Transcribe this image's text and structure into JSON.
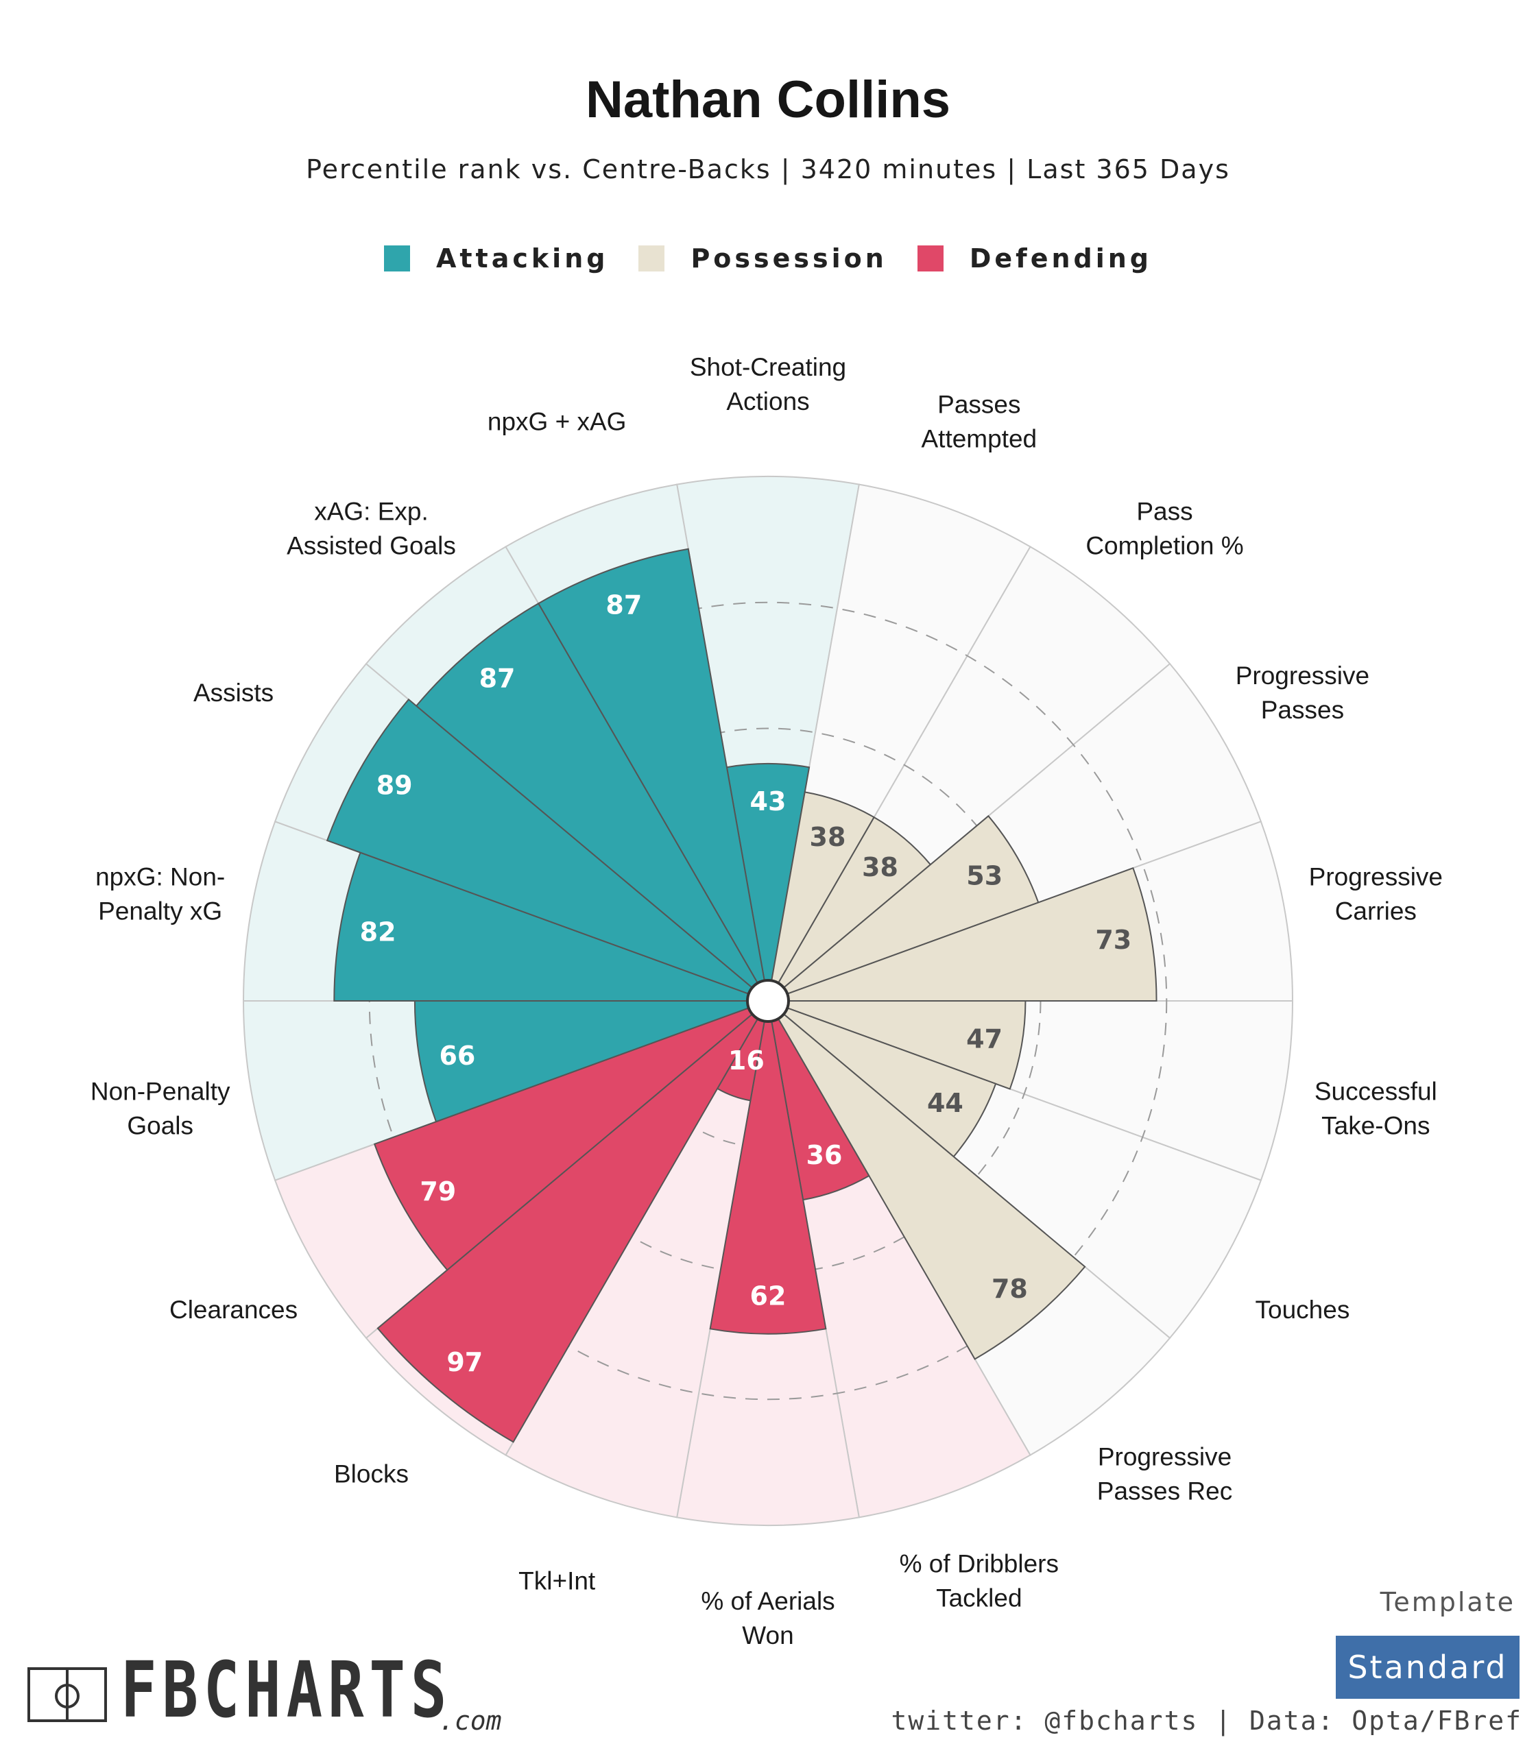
{
  "header": {
    "title": "Nathan Collins",
    "subtitle": "Percentile rank vs. Centre-Backs | 3420 minutes | Last 365 Days"
  },
  "legend": [
    {
      "label": "Attacking",
      "color": "#2fa5ac"
    },
    {
      "label": "Possession",
      "color": "#e8e2d1"
    },
    {
      "label": "Defending",
      "color": "#e04868"
    }
  ],
  "chart_data": {
    "type": "polar-bar",
    "scale_max": 100,
    "gridlines": [
      25,
      50,
      75
    ],
    "groups": {
      "Attacking": {
        "fill": "#2fa5ac",
        "background": "#e9f5f5",
        "label_color": "#ffffff"
      },
      "Possession": {
        "fill": "#e8e2d1",
        "background": "#fafafa",
        "label_color": "#555555"
      },
      "Defending": {
        "fill": "#e04868",
        "background": "#fcebef",
        "label_color": "#ffffff"
      }
    },
    "metrics": [
      {
        "label": [
          "Shot-Creating",
          "Actions"
        ],
        "value": 43,
        "group": "Attacking"
      },
      {
        "label": [
          "Passes",
          "Attempted"
        ],
        "value": 38,
        "group": "Possession"
      },
      {
        "label": [
          "Pass",
          "Completion %"
        ],
        "value": 38,
        "group": "Possession"
      },
      {
        "label": [
          "Progressive",
          "Passes"
        ],
        "value": 53,
        "group": "Possession"
      },
      {
        "label": [
          "Progressive",
          "Carries"
        ],
        "value": 73,
        "group": "Possession"
      },
      {
        "label": [
          "Successful",
          "Take-Ons"
        ],
        "value": 47,
        "group": "Possession"
      },
      {
        "label": [
          "Touches"
        ],
        "value": 44,
        "group": "Possession"
      },
      {
        "label": [
          "Progressive",
          "Passes Rec"
        ],
        "value": 78,
        "group": "Possession"
      },
      {
        "label": [
          "% of Dribblers",
          "Tackled"
        ],
        "value": 36,
        "group": "Defending"
      },
      {
        "label": [
          "% of Aerials",
          "Won"
        ],
        "value": 62,
        "group": "Defending"
      },
      {
        "label": [
          "Tkl+Int"
        ],
        "value": 16,
        "group": "Defending"
      },
      {
        "label": [
          "Blocks"
        ],
        "value": 97,
        "group": "Defending"
      },
      {
        "label": [
          "Clearances"
        ],
        "value": 79,
        "group": "Defending"
      },
      {
        "label": [
          "Non-Penalty",
          "Goals"
        ],
        "value": 66,
        "group": "Attacking"
      },
      {
        "label": [
          "npxG: Non-",
          "Penalty xG"
        ],
        "value": 82,
        "group": "Attacking"
      },
      {
        "label": [
          "Assists"
        ],
        "value": 89,
        "group": "Attacking"
      },
      {
        "label": [
          "xAG: Exp.",
          "Assisted Goals"
        ],
        "value": 87,
        "group": "Attacking"
      },
      {
        "label": [
          "npxG + xAG"
        ],
        "value": 87,
        "group": "Attacking"
      }
    ]
  },
  "branding": {
    "logo_text": "FBCHARTS",
    "logo_suffix": ".com",
    "template_label": "Template",
    "template_value": "Standard",
    "footer": "twitter: @fbcharts | Data: Opta/FBref"
  }
}
